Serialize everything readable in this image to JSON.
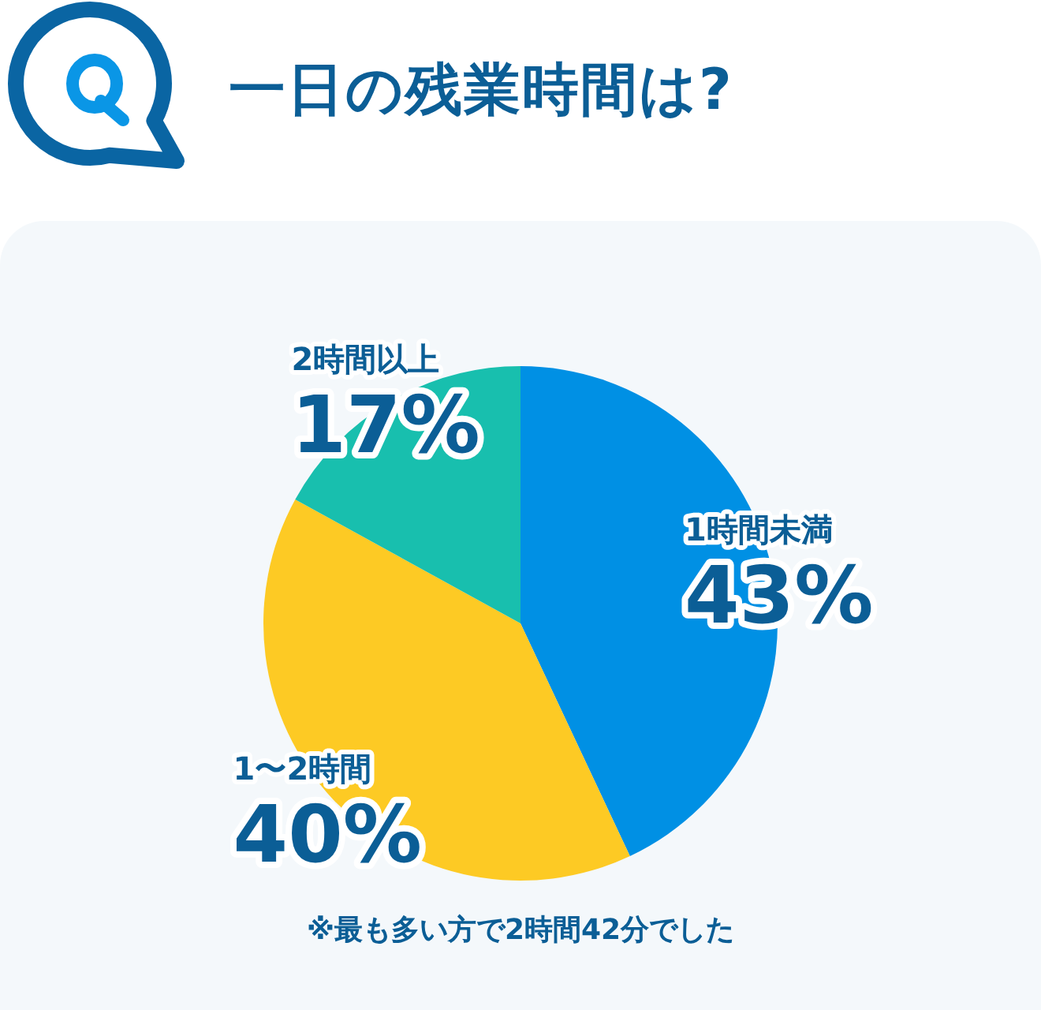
{
  "chart_data": {
    "type": "pie",
    "title": "一日の残業時間は?",
    "categories": [
      "1時間未満",
      "1〜2時間",
      "2時間以上"
    ],
    "values": [
      43,
      40,
      17
    ],
    "colors": [
      "#0090e4",
      "#fdca24",
      "#18bfae"
    ],
    "value_labels": [
      "43%",
      "40%",
      "17%"
    ],
    "annotations": [
      "※最も多い方で2時間42分でした"
    ]
  }
}
